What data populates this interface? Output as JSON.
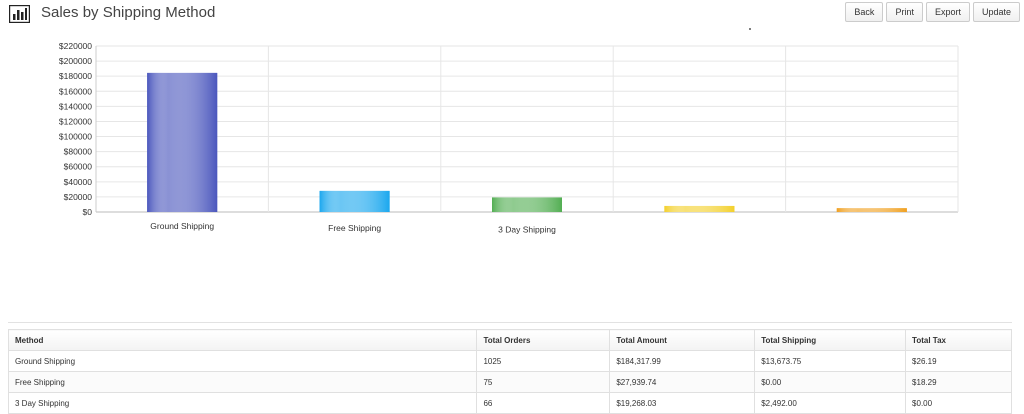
{
  "header": {
    "title": "Sales by Shipping Method",
    "icon": "bar-chart-icon"
  },
  "toolbar": {
    "back_label": "Back",
    "print_label": "Print",
    "export_label": "Export",
    "update_label": "Update"
  },
  "chart_data": {
    "type": "bar",
    "categories": [
      "Ground Shipping",
      "Free Shipping",
      "3 Day Shipping",
      "",
      ""
    ],
    "values": [
      184317.99,
      27939.74,
      19268.03,
      8000,
      5000
    ],
    "colors": [
      "#4a56bd",
      "#1aa7ee",
      "#52ae52",
      "#f3d02b",
      "#f0a020"
    ],
    "title": "",
    "xlabel": "",
    "ylabel": "",
    "ylim": [
      0,
      220000
    ],
    "yticks": [
      "$0",
      "$20000",
      "$40000",
      "$60000",
      "$80000",
      "$100000",
      "$120000",
      "$140000",
      "$160000",
      "$180000",
      "$200000",
      "$220000"
    ],
    "grid": true,
    "legend": "none"
  },
  "table": {
    "headers": [
      "Method",
      "Total Orders",
      "Total Amount",
      "Total Shipping",
      "Total Tax"
    ],
    "rows": [
      [
        "Ground Shipping",
        "1025",
        "$184,317.99",
        "$13,673.75",
        "$26.19"
      ],
      [
        "Free Shipping",
        "75",
        "$27,939.74",
        "$0.00",
        "$18.29"
      ],
      [
        "3 Day Shipping",
        "66",
        "$19,268.03",
        "$2,492.00",
        "$0.00"
      ]
    ]
  }
}
